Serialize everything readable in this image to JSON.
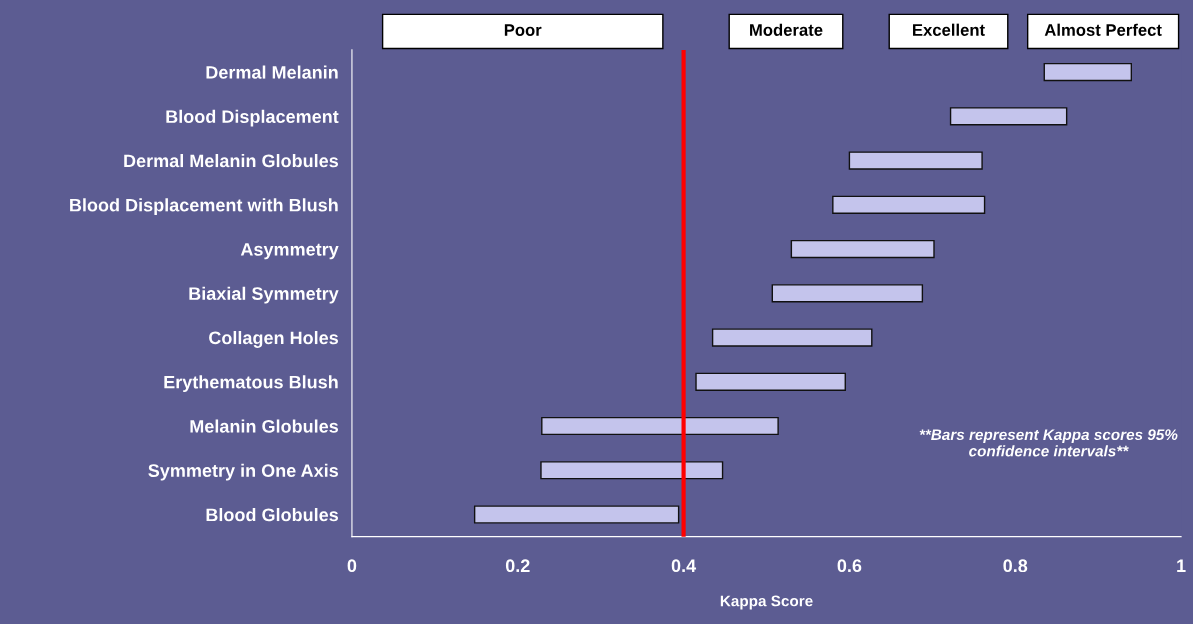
{
  "chart_data": {
    "type": "bar",
    "orientation": "horizontal",
    "xlabel": "Kappa Score",
    "categories": [
      "Dermal Melanin",
      "Blood Displacement",
      "Dermal Melanin Globules",
      "Blood Displacement with Blush",
      "Asymmetry",
      "Biaxial Symmetry",
      "Collagen Holes",
      "Erythematous Blush",
      "Melanin Globules",
      "Symmetry in One Axis",
      "Blood Globules"
    ],
    "base": [
      0.835,
      0.722,
      0.6,
      0.58,
      0.53,
      0.507,
      0.435,
      0.415,
      0.229,
      0.228,
      0.148
    ],
    "values": [
      0.105,
      0.14,
      0.16,
      0.183,
      0.172,
      0.181,
      0.192,
      0.18,
      0.285,
      0.219,
      0.246
    ],
    "color": "#c4c4ec",
    "xlim": [
      0,
      1
    ],
    "xticks": [
      0,
      0.2,
      0.4,
      0.6,
      0.8,
      1
    ],
    "ref_lines": [
      {
        "axis": "x",
        "value": 0.4,
        "color": "#ff0000"
      }
    ],
    "annotations": [
      "Poor",
      "Moderate",
      "Excellent",
      "Almost Perfect",
      "**Bars represent Kappa scores 95% confidence intervals**"
    ],
    "grid": false,
    "legend": false
  }
}
